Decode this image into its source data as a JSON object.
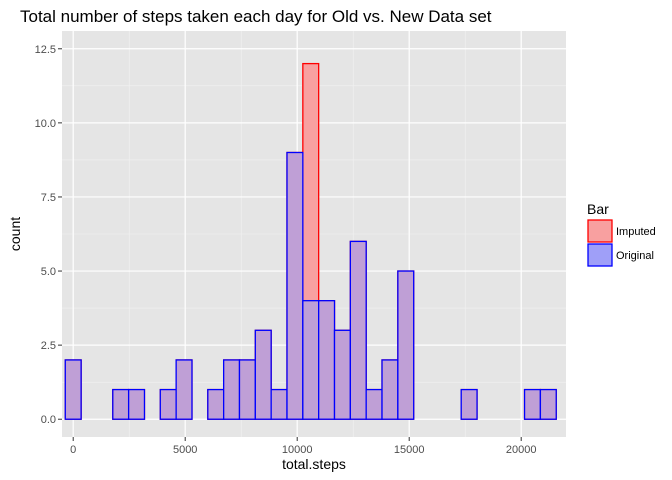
{
  "chart_data": {
    "type": "bar",
    "title": "Total number of steps taken each day for Old vs. New Data set",
    "xlabel": "total.steps",
    "ylabel": "count",
    "xlim": [
      -500,
      22000
    ],
    "ylim": [
      0,
      12.5
    ],
    "bin_width": 707,
    "x_ticks": [
      0,
      5000,
      10000,
      15000,
      20000
    ],
    "x_tick_labels": [
      "0",
      "5000",
      "10000",
      "15000",
      "20000"
    ],
    "y_ticks": [
      0,
      2.5,
      5,
      7.5,
      10,
      12.5
    ],
    "y_tick_labels": [
      "0.0",
      "2.5",
      "5.0",
      "7.5",
      "10.0",
      "12.5"
    ],
    "bin_centers": [
      0,
      707,
      1414,
      2121,
      2828,
      3535,
      4242,
      4949,
      5656,
      6363,
      7070,
      7777,
      8484,
      9191,
      9898,
      10605,
      11312,
      12019,
      12726,
      13433,
      14140,
      14847,
      15554,
      16261,
      16968,
      17675,
      18382,
      19089,
      19796,
      20503,
      21210
    ],
    "grid": true,
    "legend": {
      "title": "Bar",
      "position": "right"
    },
    "series": [
      {
        "name": "Imputed",
        "fill": "#f8a0a0",
        "stroke": "#ff0000",
        "values": [
          2,
          0,
          0,
          1,
          1,
          0,
          1,
          2,
          0,
          1,
          2,
          2,
          3,
          1,
          9,
          12,
          4,
          3,
          6,
          1,
          2,
          5,
          0,
          0,
          0,
          1,
          0,
          0,
          0,
          1,
          1
        ]
      },
      {
        "name": "Original",
        "fill": "#9f9ff8",
        "stroke": "#0000ff",
        "values": [
          2,
          0,
          0,
          1,
          1,
          0,
          1,
          2,
          0,
          1,
          2,
          2,
          3,
          1,
          9,
          4,
          4,
          3,
          6,
          1,
          2,
          5,
          0,
          0,
          0,
          1,
          0,
          0,
          0,
          1,
          1
        ]
      }
    ],
    "colors": {
      "panel_bg": "#e5e5e5",
      "grid_major": "#ffffff",
      "overlap_fill": "#bf9fd6"
    }
  }
}
